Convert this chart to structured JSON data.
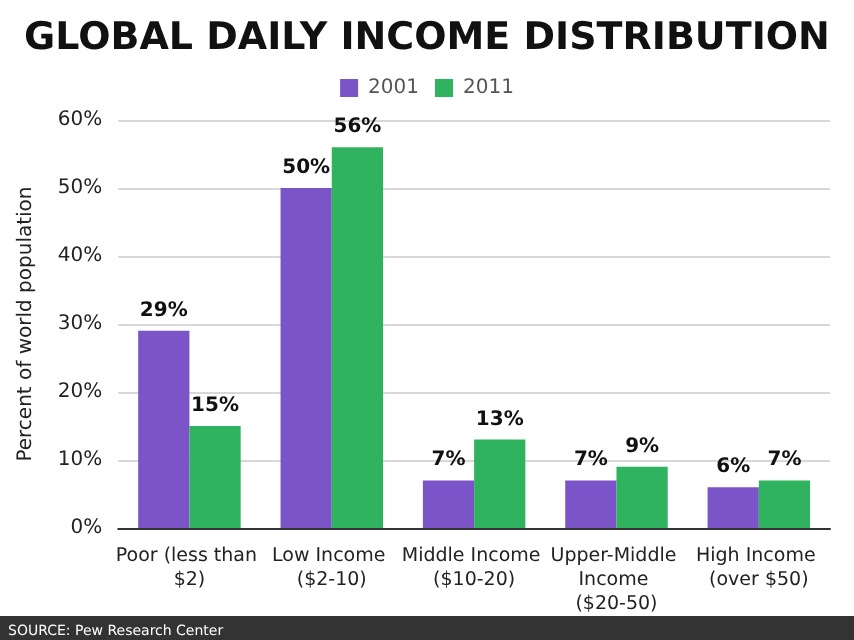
{
  "chart_data": {
    "type": "bar",
    "title": "GLOBAL DAILY INCOME DISTRIBUTION",
    "ylabel": "Percent of world population",
    "categories": [
      "Poor (less than $2)",
      "Low Income ($2-10)",
      "Middle Income ($10-20)",
      "Upper-Middle Income ($20-50)",
      "High Income (over $50)"
    ],
    "series": [
      {
        "name": "2001",
        "color": "#7b55c7",
        "values": [
          29,
          50,
          7,
          7,
          6
        ],
        "value_labels": [
          "29%",
          "50%",
          "7%",
          "7%",
          "6%"
        ]
      },
      {
        "name": "2011",
        "color": "#2fb35f",
        "values": [
          15,
          56,
          13,
          9,
          7
        ],
        "value_labels": [
          "15%",
          "56%",
          "13%",
          "9%",
          "7%"
        ]
      }
    ],
    "ylim": [
      0,
      60
    ],
    "yticks": [
      {
        "value": 0,
        "label": "0%"
      },
      {
        "value": 10,
        "label": "10%"
      },
      {
        "value": 20,
        "label": "20%"
      },
      {
        "value": 30,
        "label": "30%"
      },
      {
        "value": 40,
        "label": "40%"
      },
      {
        "value": 50,
        "label": "50%"
      },
      {
        "value": 60,
        "label": "60%"
      }
    ],
    "grid": "y",
    "legend": "top",
    "annotations": [
      "SOURCE: Pew Research Center"
    ]
  }
}
